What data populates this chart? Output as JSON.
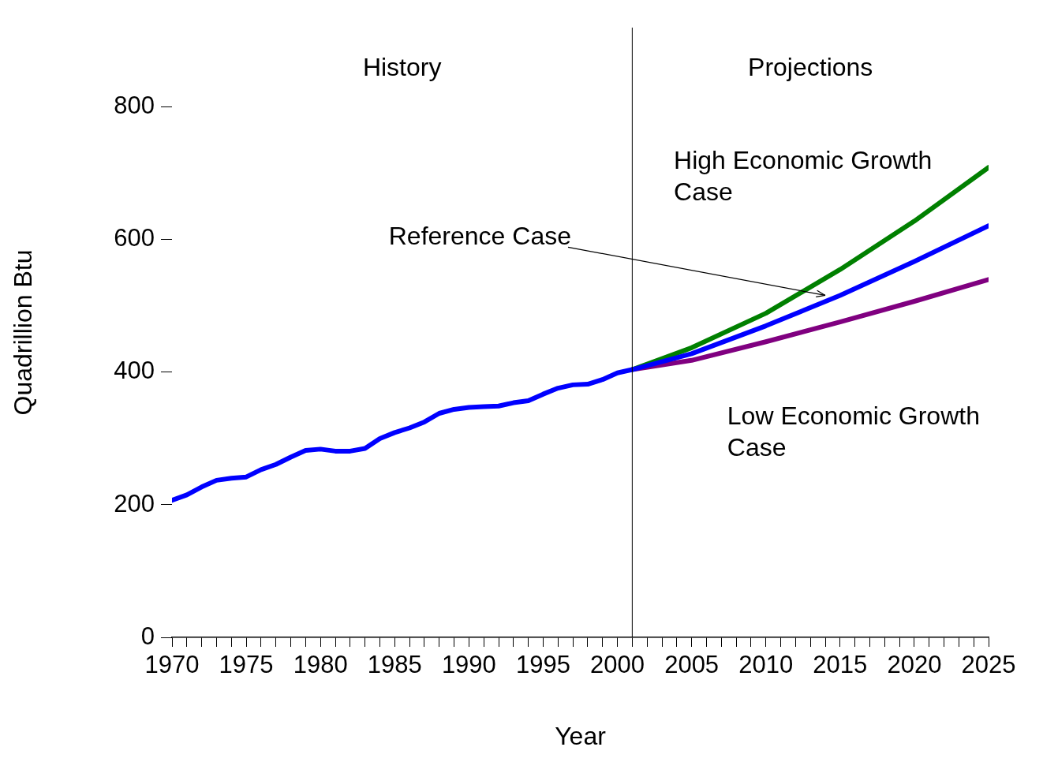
{
  "chart_data": {
    "type": "line",
    "xlabel": "Year",
    "ylabel": "Quadrillion Btu",
    "xlim": [
      1970,
      2025
    ],
    "ylim": [
      0,
      920
    ],
    "xticks": [
      1970,
      {
        "value": 1971,
        "label": null
      },
      {
        "value": 1972,
        "label": null
      },
      {
        "value": 1973,
        "label": null
      },
      {
        "value": 1974,
        "label": null
      },
      1975,
      {
        "value": 1976,
        "label": null
      },
      {
        "value": 1977,
        "label": null
      },
      {
        "value": 1978,
        "label": null
      },
      {
        "value": 1979,
        "label": null
      },
      1980,
      {
        "value": 1981,
        "label": null
      },
      {
        "value": 1982,
        "label": null
      },
      {
        "value": 1983,
        "label": null
      },
      {
        "value": 1984,
        "label": null
      },
      1985,
      {
        "value": 1986,
        "label": null
      },
      {
        "value": 1987,
        "label": null
      },
      {
        "value": 1988,
        "label": null
      },
      {
        "value": 1989,
        "label": null
      },
      1990,
      {
        "value": 1991,
        "label": null
      },
      {
        "value": 1992,
        "label": null
      },
      {
        "value": 1993,
        "label": null
      },
      {
        "value": 1994,
        "label": null
      },
      1995,
      {
        "value": 1996,
        "label": null
      },
      {
        "value": 1997,
        "label": null
      },
      {
        "value": 1998,
        "label": null
      },
      {
        "value": 1999,
        "label": null
      },
      2000,
      {
        "value": 2001,
        "label": null
      },
      {
        "value": 2002,
        "label": null
      },
      {
        "value": 2003,
        "label": null
      },
      {
        "value": 2004,
        "label": null
      },
      2005,
      {
        "value": 2006,
        "label": null
      },
      {
        "value": 2007,
        "label": null
      },
      {
        "value": 2008,
        "label": null
      },
      {
        "value": 2009,
        "label": null
      },
      2010,
      {
        "value": 2011,
        "label": null
      },
      {
        "value": 2012,
        "label": null
      },
      {
        "value": 2013,
        "label": null
      },
      {
        "value": 2014,
        "label": null
      },
      2015,
      {
        "value": 2016,
        "label": null
      },
      {
        "value": 2017,
        "label": null
      },
      {
        "value": 2018,
        "label": null
      },
      {
        "value": 2019,
        "label": null
      },
      2020,
      {
        "value": 2021,
        "label": null
      },
      {
        "value": 2022,
        "label": null
      },
      {
        "value": 2023,
        "label": null
      },
      {
        "value": 2024,
        "label": null
      },
      2025
    ],
    "yticks": [
      0,
      200,
      400,
      600,
      800
    ],
    "grid": false,
    "legend": false,
    "marker": "none",
    "line_style": "solid",
    "series": [
      {
        "color": "#0000ff",
        "x": [
          1970,
          1971,
          1972,
          1973,
          1974,
          1975,
          1976,
          1977,
          1978,
          1979,
          1980,
          1981,
          1982,
          1983,
          1984,
          1985,
          1986,
          1987,
          1988,
          1989,
          1990,
          1991,
          1992,
          1993,
          1994,
          1995,
          1996,
          1997,
          1998,
          1999,
          2000,
          2001,
          2005,
          2010,
          2015,
          2020,
          2025
        ],
        "values": [
          207,
          215,
          227,
          237,
          240,
          242,
          253,
          261,
          272,
          282,
          284,
          281,
          281,
          285,
          300,
          309,
          316,
          325,
          338,
          344,
          347,
          348,
          349,
          354,
          357,
          367,
          376,
          381,
          382,
          389,
          399,
          404,
          428,
          470,
          516,
          567,
          621
        ]
      },
      {
        "name": "High Economic Growth Case",
        "color": "#008000",
        "x": [
          2001,
          2005,
          2010,
          2015,
          2020,
          2025
        ],
        "values": [
          404,
          437,
          489,
          555,
          628,
          709
        ]
      },
      {
        "name": "Low Economic Growth Case",
        "color": "#800080",
        "x": [
          2001,
          2005,
          2010,
          2015,
          2020,
          2025
        ],
        "values": [
          404,
          418,
          446,
          476,
          507,
          540
        ]
      }
    ],
    "ref_lines": [
      {
        "axis": "x",
        "value": 2001,
        "color": "#000000"
      }
    ],
    "annotations": [
      "History",
      "Projections",
      {
        "text": "Reference Case",
        "x": 2014,
        "y": 516
      }
    ]
  }
}
